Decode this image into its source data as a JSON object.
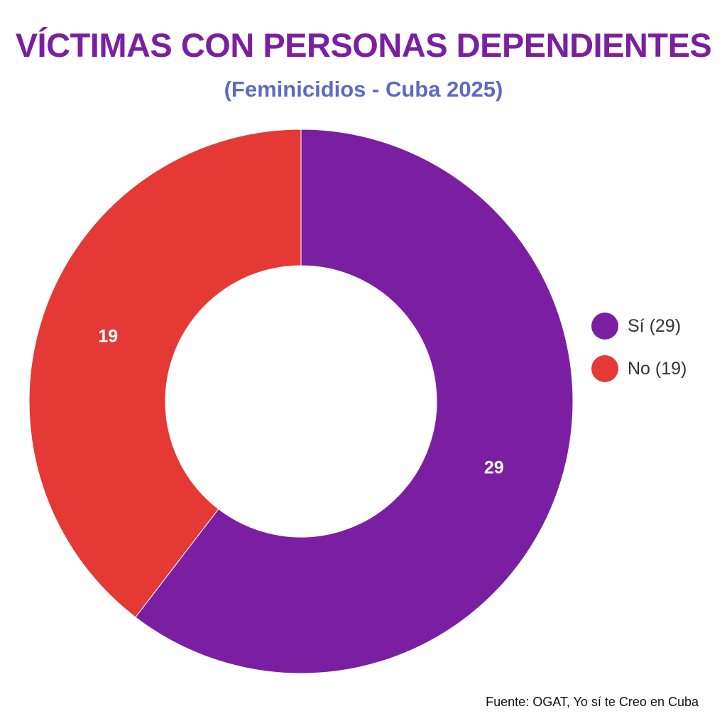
{
  "title": "VÍCTIMAS CON PERSONAS DEPENDIENTES",
  "subtitle": "(Feminicidios - Cuba 2025)",
  "source": "Fuente: OGAT, Yo sí te Creo en Cuba",
  "chart_data": {
    "type": "pie",
    "donut": true,
    "title": "VÍCTIMAS CON PERSONAS DEPENDIENTES",
    "subtitle": "(Feminicidios - Cuba 2025)",
    "legend_position": "right",
    "slices": [
      {
        "label": "Sí",
        "value": 29,
        "data_label": "29",
        "legend": "Sí (29)",
        "color": "#7b1fa2"
      },
      {
        "label": "No",
        "value": 19,
        "data_label": "19",
        "legend": "No (19)",
        "color": "#e53935"
      }
    ]
  }
}
